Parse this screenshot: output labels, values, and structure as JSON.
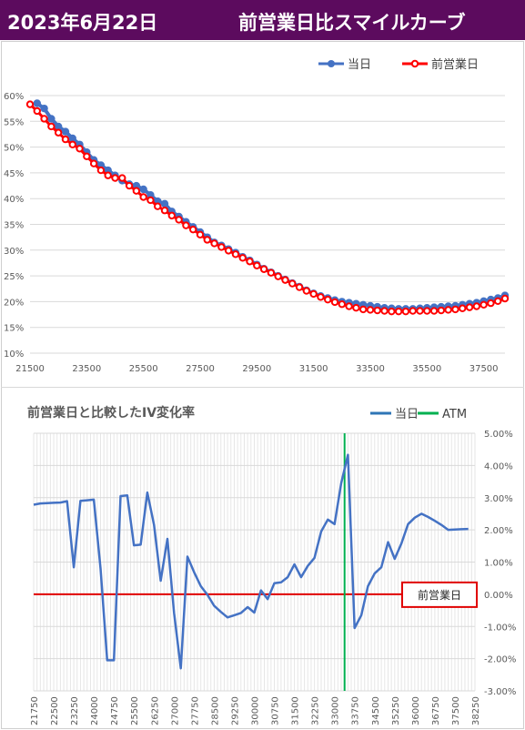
{
  "header": {
    "date": "2023年6月22日",
    "title": "前営業日比スマイルカーブ",
    "background": "#5c0b5e",
    "text_color": "#ffffff"
  },
  "chart_data": [
    {
      "type": "line",
      "title": "",
      "legend": [
        "当日",
        "前営業日"
      ],
      "legend_position": "top-right",
      "xlim": [
        21500,
        38250
      ],
      "ylim": [
        0.1,
        0.6
      ],
      "x_ticks": [
        "21500",
        "23500",
        "25500",
        "27500",
        "29500",
        "31500",
        "33500",
        "35500",
        "37500"
      ],
      "y_ticks": [
        "10%",
        "15%",
        "20%",
        "25%",
        "30%",
        "35%",
        "40%",
        "45%",
        "50%",
        "55%",
        "60%"
      ],
      "grid": true,
      "series": [
        {
          "name": "当日",
          "color": "#4472c4",
          "marker": "circle",
          "x": [
            21750,
            22000,
            22250,
            22500,
            22750,
            23000,
            23250,
            23500,
            23750,
            24000,
            24250,
            24500,
            24750,
            25000,
            25250,
            25500,
            25750,
            26000,
            26250,
            26500,
            26750,
            27000,
            27250,
            27500,
            27750,
            28000,
            28250,
            28500,
            28750,
            29000,
            29250,
            29500,
            29750,
            30000,
            30250,
            30500,
            30750,
            31000,
            31250,
            31500,
            31750,
            32000,
            32250,
            32500,
            32750,
            33000,
            33250,
            33500,
            33750,
            34000,
            34250,
            34500,
            34750,
            35000,
            35250,
            35500,
            35750,
            36000,
            36250,
            36500,
            36750,
            37000,
            37250,
            37500,
            37750,
            38000,
            38250
          ],
          "y": [
            0.585,
            0.575,
            0.555,
            0.54,
            0.53,
            0.517,
            0.505,
            0.49,
            0.475,
            0.465,
            0.455,
            0.445,
            0.435,
            0.428,
            0.425,
            0.418,
            0.407,
            0.395,
            0.39,
            0.375,
            0.365,
            0.355,
            0.345,
            0.335,
            0.325,
            0.315,
            0.309,
            0.302,
            0.295,
            0.287,
            0.28,
            0.272,
            0.264,
            0.257,
            0.25,
            0.243,
            0.236,
            0.229,
            0.222,
            0.216,
            0.211,
            0.207,
            0.203,
            0.2,
            0.198,
            0.196,
            0.194,
            0.192,
            0.19,
            0.188,
            0.187,
            0.186,
            0.186,
            0.186,
            0.187,
            0.188,
            0.189,
            0.19,
            0.191,
            0.192,
            0.194,
            0.196,
            0.198,
            0.201,
            0.204,
            0.207,
            0.212
          ]
        },
        {
          "name": "前営業日",
          "color": "#ff0000",
          "marker": "circle",
          "x": [
            21500,
            21750,
            22000,
            22250,
            22500,
            22750,
            23000,
            23250,
            23500,
            23750,
            24000,
            24250,
            24500,
            24750,
            25000,
            25250,
            25500,
            25750,
            26000,
            26250,
            26500,
            26750,
            27000,
            27250,
            27500,
            27750,
            28000,
            28250,
            28500,
            28750,
            29000,
            29250,
            29500,
            29750,
            30000,
            30250,
            30500,
            30750,
            31000,
            31250,
            31500,
            31750,
            32000,
            32250,
            32500,
            32750,
            33000,
            33250,
            33500,
            33750,
            34000,
            34250,
            34500,
            34750,
            35000,
            35250,
            35500,
            35750,
            36000,
            36250,
            36500,
            36750,
            37000,
            37250,
            37500,
            37750,
            38000,
            38250
          ],
          "y": [
            0.583,
            0.57,
            0.555,
            0.54,
            0.528,
            0.515,
            0.505,
            0.497,
            0.482,
            0.468,
            0.455,
            0.445,
            0.44,
            0.44,
            0.425,
            0.415,
            0.403,
            0.397,
            0.385,
            0.377,
            0.367,
            0.359,
            0.348,
            0.34,
            0.33,
            0.32,
            0.313,
            0.306,
            0.299,
            0.292,
            0.285,
            0.278,
            0.27,
            0.263,
            0.256,
            0.249,
            0.242,
            0.235,
            0.228,
            0.221,
            0.215,
            0.209,
            0.204,
            0.199,
            0.195,
            0.191,
            0.188,
            0.185,
            0.184,
            0.183,
            0.182,
            0.181,
            0.181,
            0.181,
            0.182,
            0.182,
            0.182,
            0.182,
            0.183,
            0.184,
            0.185,
            0.187,
            0.189,
            0.191,
            0.194,
            0.197,
            0.201,
            0.206
          ]
        }
      ]
    },
    {
      "type": "line",
      "title": "前営業日と比較したIV変化率",
      "legend": [
        "当日",
        "ATM"
      ],
      "legend_position": "top-right",
      "ylim": [
        -0.03,
        0.05
      ],
      "y_ticks": [
        "5.00%",
        "4.00%",
        "3.00%",
        "2.00%",
        "1.00%",
        "0.00%",
        "-1.00%",
        "-2.00%",
        "-3.00%"
      ],
      "x_ticks": [
        "21750",
        "22500",
        "23250",
        "24000",
        "24750",
        "25500",
        "26250",
        "27000",
        "27750",
        "28500",
        "29250",
        "30000",
        "30750",
        "31500",
        "32250",
        "33000",
        "33750",
        "34500",
        "35250",
        "36000",
        "36750",
        "37500",
        "38250"
      ],
      "annotation": "前営業日",
      "atm_x": 33375,
      "grid": true,
      "series": [
        {
          "name": "当日",
          "color": "#4472c4",
          "x": [
            21750,
            22000,
            22250,
            22500,
            22750,
            23000,
            23250,
            23500,
            23750,
            24000,
            24250,
            24500,
            24750,
            25000,
            25250,
            25500,
            25750,
            26000,
            26250,
            26500,
            26750,
            27000,
            27250,
            27500,
            27750,
            28000,
            28250,
            28500,
            28750,
            29000,
            29250,
            29500,
            29750,
            30000,
            30250,
            30500,
            30750,
            31000,
            31250,
            31500,
            31750,
            32000,
            32250,
            32500,
            32750,
            33000,
            33250,
            33500,
            33750,
            34000,
            34250,
            34500,
            34750,
            35000,
            35250,
            35500,
            35750,
            36000,
            36250,
            36500,
            36750,
            37000,
            37250,
            37500,
            37750,
            38000
          ],
          "y": [
            0.0278,
            0.0282,
            0.0283,
            0.0284,
            0.0285,
            0.0289,
            0.0084,
            0.029,
            0.0292,
            0.0294,
            0.008,
            -0.0205,
            -0.0205,
            0.0305,
            0.0307,
            0.0152,
            0.0154,
            0.0316,
            0.0215,
            0.0042,
            0.0172,
            -0.0058,
            -0.023,
            0.0117,
            0.0068,
            0.0025,
            -0.0002,
            -0.0036,
            -0.0055,
            -0.0072,
            -0.0065,
            -0.0058,
            -0.004,
            -0.0057,
            0.0012,
            -0.0015,
            0.0034,
            0.0037,
            0.0053,
            0.0093,
            0.0053,
            0.0088,
            0.0113,
            0.0195,
            0.0232,
            0.0218,
            0.0345,
            0.0433,
            -0.0105,
            -0.0065,
            0.0025,
            0.0065,
            0.0084,
            0.0162,
            0.011,
            0.0158,
            0.0218,
            0.0238,
            0.025,
            0.024,
            0.0228,
            0.0215,
            0.02,
            0.0201,
            0.0202,
            0.0203
          ]
        },
        {
          "name": "ATM",
          "color": "#00b050"
        },
        {
          "name": "前営業日",
          "color": "#e00000",
          "y_constant": 0.0
        }
      ]
    }
  ]
}
